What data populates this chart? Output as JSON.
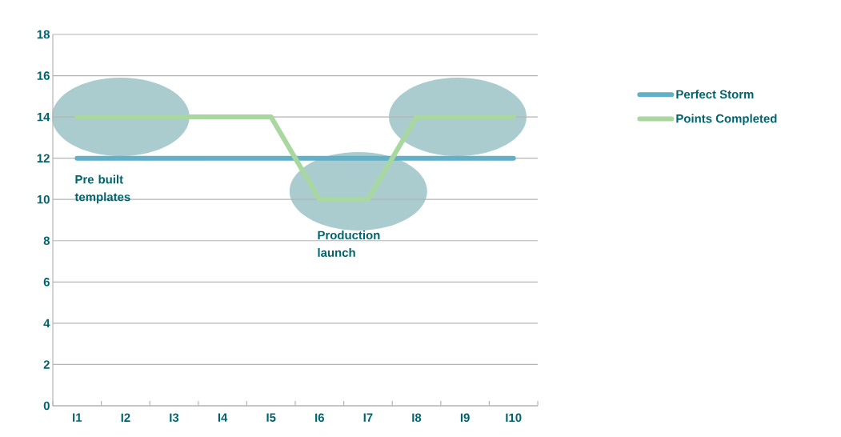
{
  "chart_data": {
    "type": "line",
    "categories": [
      "I1",
      "I2",
      "I3",
      "I4",
      "I5",
      "I6",
      "I7",
      "I8",
      "I9",
      "I10"
    ],
    "series": [
      {
        "name": "Perfect Storm",
        "color": "#62b0c8",
        "values": [
          12,
          12,
          12,
          12,
          12,
          12,
          12,
          12,
          12,
          12
        ]
      },
      {
        "name": "Points Completed",
        "color": "#a8d8a0",
        "values": [
          14,
          14,
          14,
          14,
          14,
          10,
          10,
          14,
          14,
          14
        ]
      }
    ],
    "ylim": [
      0,
      18
    ],
    "yticks": [
      0,
      2,
      4,
      6,
      8,
      10,
      12,
      14,
      16,
      18
    ],
    "grid": "y",
    "legend": "right",
    "marker": "none",
    "line_style": "solid",
    "annotations": [
      "Pre built templates",
      "Production launch"
    ]
  }
}
